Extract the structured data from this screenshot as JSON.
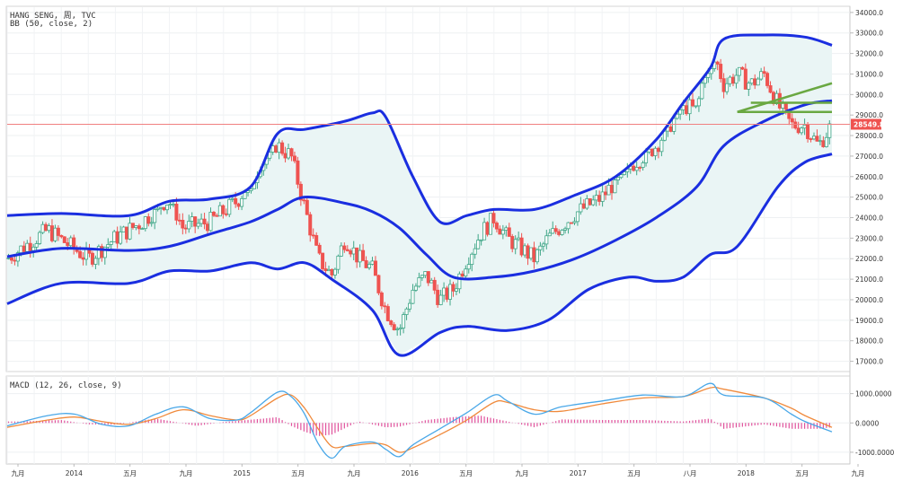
{
  "main_legend": {
    "symbol_line": "HANG SENG, 周, TVC",
    "indicator_line": "BB (50, close, 2)"
  },
  "macd_legend": "MACD (12, 26, close, 9)",
  "current_price_label": "28549.8",
  "x_tick_labels": [
    "九月",
    "2014",
    "五月",
    "九月",
    "2015",
    "五月",
    "九月",
    "2016",
    "五月",
    "九月",
    "2017",
    "五月",
    "八月",
    "2018",
    "五月",
    "九月"
  ],
  "colors": {
    "up": "#3fa687",
    "down": "#ef5350",
    "band": "#1a2ee0",
    "band_fill": "#eaf5f5",
    "trendline": "#6aa842",
    "macd_line": "#4aa8e8",
    "signal_line": "#f08a3c",
    "histogram": "#e0529c",
    "price_line": "#f08080"
  },
  "chart_data": [
    {
      "type": "candlestick",
      "title": "HANG SENG, 周, TVC",
      "indicator": "BB (50, close, 2)",
      "ylim": [
        16500,
        34300
      ],
      "y_ticks": [
        "17000.0",
        "18000.0",
        "19000.0",
        "20000.0",
        "21000.0",
        "22000.0",
        "23000.0",
        "24000.0",
        "25000.0",
        "26000.0",
        "27000.0",
        "28000.0",
        "29000.0",
        "30000.0",
        "31000.0",
        "32000.0",
        "33000.0",
        "34000.0"
      ],
      "x_range": [
        "2013-09",
        "2018-10"
      ],
      "price_path": [
        [
          "2013-09",
          22000
        ],
        [
          "2013-12",
          23400
        ],
        [
          "2014-03",
          22000
        ],
        [
          "2014-05",
          23000
        ],
        [
          "2014-07",
          23800
        ],
        [
          "2014-09",
          25000
        ],
        [
          "2014-10",
          23500
        ],
        [
          "2014-12",
          23800
        ],
        [
          "2015-02",
          24800
        ],
        [
          "2015-03",
          25800
        ],
        [
          "2015-04",
          28000
        ],
        [
          "2015-05",
          27500
        ],
        [
          "2015-06",
          27000
        ],
        [
          "2015-07",
          24500
        ],
        [
          "2015-08",
          22000
        ],
        [
          "2015-09",
          21200
        ],
        [
          "2015-10",
          23000
        ],
        [
          "2015-11",
          22000
        ],
        [
          "2015-12",
          21500
        ],
        [
          "2016-01",
          19500
        ],
        [
          "2016-02",
          18500
        ],
        [
          "2016-03",
          20500
        ],
        [
          "2016-04",
          21200
        ],
        [
          "2016-05",
          20000
        ],
        [
          "2016-06",
          20500
        ],
        [
          "2016-07",
          22000
        ],
        [
          "2016-08",
          23200
        ],
        [
          "2016-09",
          24000
        ],
        [
          "2016-10",
          23000
        ],
        [
          "2016-11",
          22500
        ],
        [
          "2016-12",
          22000
        ],
        [
          "2017-01",
          23000
        ],
        [
          "2017-03",
          24200
        ],
        [
          "2017-05",
          25000
        ],
        [
          "2017-06",
          25800
        ],
        [
          "2017-07",
          26500
        ],
        [
          "2017-09",
          27500
        ],
        [
          "2017-10",
          28500
        ],
        [
          "2017-11",
          29500
        ],
        [
          "2017-12",
          29200
        ],
        [
          "2018-01",
          32500
        ],
        [
          "2018-02",
          30500
        ],
        [
          "2018-03",
          31000
        ],
        [
          "2018-04",
          30500
        ],
        [
          "2018-05",
          31000
        ],
        [
          "2018-06",
          29500
        ],
        [
          "2018-07",
          28500
        ],
        [
          "2018-08",
          28500
        ],
        [
          "2018-09",
          27500
        ],
        [
          "2018-10",
          28550
        ]
      ],
      "upper_band": [
        [
          "2013-09",
          24100
        ],
        [
          "2014-01",
          24200
        ],
        [
          "2014-06",
          24100
        ],
        [
          "2014-09",
          24800
        ],
        [
          "2014-12",
          24900
        ],
        [
          "2015-03",
          25500
        ],
        [
          "2015-05",
          28100
        ],
        [
          "2015-07",
          28300
        ],
        [
          "2015-10",
          28700
        ],
        [
          "2015-12",
          29100
        ],
        [
          "2016-01",
          28900
        ],
        [
          "2016-03",
          26000
        ],
        [
          "2016-05",
          23800
        ],
        [
          "2016-07",
          24100
        ],
        [
          "2016-09",
          24400
        ],
        [
          "2016-12",
          24400
        ],
        [
          "2017-03",
          25100
        ],
        [
          "2017-06",
          26000
        ],
        [
          "2017-09",
          27800
        ],
        [
          "2017-11",
          29600
        ],
        [
          "2018-01",
          31300
        ],
        [
          "2018-02",
          32700
        ],
        [
          "2018-05",
          32900
        ],
        [
          "2018-08",
          32800
        ],
        [
          "2018-10",
          32400
        ]
      ],
      "middle_band": [
        [
          "2013-09",
          22100
        ],
        [
          "2014-01",
          22500
        ],
        [
          "2014-06",
          22400
        ],
        [
          "2014-09",
          22600
        ],
        [
          "2014-12",
          23200
        ],
        [
          "2015-03",
          23800
        ],
        [
          "2015-05",
          24400
        ],
        [
          "2015-07",
          25000
        ],
        [
          "2015-10",
          24700
        ],
        [
          "2015-12",
          24300
        ],
        [
          "2016-02",
          23500
        ],
        [
          "2016-04",
          22200
        ],
        [
          "2016-06",
          21100
        ],
        [
          "2016-09",
          21100
        ],
        [
          "2016-12",
          21400
        ],
        [
          "2017-03",
          22000
        ],
        [
          "2017-06",
          22900
        ],
        [
          "2017-09",
          24000
        ],
        [
          "2017-12",
          25500
        ],
        [
          "2018-02",
          27500
        ],
        [
          "2018-05",
          28700
        ],
        [
          "2018-08",
          29500
        ],
        [
          "2018-10",
          29700
        ]
      ],
      "lower_band": [
        [
          "2013-09",
          19800
        ],
        [
          "2014-01",
          20800
        ],
        [
          "2014-06",
          20800
        ],
        [
          "2014-09",
          21400
        ],
        [
          "2014-12",
          21400
        ],
        [
          "2015-03",
          21800
        ],
        [
          "2015-05",
          21500
        ],
        [
          "2015-07",
          21800
        ],
        [
          "2015-09",
          21000
        ],
        [
          "2015-12",
          19500
        ],
        [
          "2016-02",
          17300
        ],
        [
          "2016-05",
          18400
        ],
        [
          "2016-07",
          18700
        ],
        [
          "2016-10",
          18500
        ],
        [
          "2017-01",
          19000
        ],
        [
          "2017-04",
          20500
        ],
        [
          "2017-07",
          21100
        ],
        [
          "2017-09",
          20900
        ],
        [
          "2017-11",
          21100
        ],
        [
          "2018-01",
          22200
        ],
        [
          "2018-03",
          22600
        ],
        [
          "2018-06",
          25500
        ],
        [
          "2018-08",
          26700
        ],
        [
          "2018-10",
          27100
        ]
      ],
      "trend_lines": [
        [
          [
            "2018-03",
            29150
          ],
          [
            "2018-10",
            30550
          ]
        ],
        [
          [
            "2018-03",
            29150
          ],
          [
            "2018-10",
            29150
          ]
        ],
        [
          [
            "2018-04",
            29600
          ],
          [
            "2018-10",
            29600
          ]
        ]
      ],
      "current_price": 28549.8
    },
    {
      "type": "line",
      "title": "MACD (12, 26, close, 9)",
      "ylim": [
        -1400,
        1600
      ],
      "y_ticks": [
        "1000.0000",
        "0.0000",
        "-1000.0000"
      ],
      "series": [
        {
          "name": "MACD",
          "values": [
            [
              "2013-09",
              -100
            ],
            [
              "2013-12",
              250
            ],
            [
              "2014-02",
              300
            ],
            [
              "2014-04",
              -50
            ],
            [
              "2014-06",
              -100
            ],
            [
              "2014-08",
              300
            ],
            [
              "2014-10",
              550
            ],
            [
              "2014-12",
              150
            ],
            [
              "2015-02",
              100
            ],
            [
              "2015-03",
              350
            ],
            [
              "2015-05",
              1050
            ],
            [
              "2015-06",
              900
            ],
            [
              "2015-07",
              300
            ],
            [
              "2015-08",
              -700
            ],
            [
              "2015-09",
              -1200
            ],
            [
              "2015-10",
              -800
            ],
            [
              "2015-12",
              -650
            ],
            [
              "2016-01",
              -900
            ],
            [
              "2016-02",
              -1150
            ],
            [
              "2016-03",
              -750
            ],
            [
              "2016-05",
              -200
            ],
            [
              "2016-07",
              350
            ],
            [
              "2016-09",
              950
            ],
            [
              "2016-10",
              750
            ],
            [
              "2016-12",
              300
            ],
            [
              "2017-02",
              550
            ],
            [
              "2017-05",
              750
            ],
            [
              "2017-08",
              950
            ],
            [
              "2017-11",
              900
            ],
            [
              "2018-01",
              1350
            ],
            [
              "2018-02",
              950
            ],
            [
              "2018-05",
              850
            ],
            [
              "2018-07",
              300
            ],
            [
              "2018-08",
              50
            ],
            [
              "2018-10",
              -300
            ]
          ]
        },
        {
          "name": "Signal",
          "values": [
            [
              "2013-09",
              -150
            ],
            [
              "2013-12",
              100
            ],
            [
              "2014-02",
              200
            ],
            [
              "2014-04",
              50
            ],
            [
              "2014-06",
              -50
            ],
            [
              "2014-08",
              150
            ],
            [
              "2014-10",
              450
            ],
            [
              "2014-12",
              250
            ],
            [
              "2015-02",
              100
            ],
            [
              "2015-03",
              250
            ],
            [
              "2015-05",
              850
            ],
            [
              "2015-06",
              950
            ],
            [
              "2015-07",
              500
            ],
            [
              "2015-08",
              -200
            ],
            [
              "2015-09",
              -800
            ],
            [
              "2015-10",
              -800
            ],
            [
              "2015-12",
              -700
            ],
            [
              "2016-01",
              -750
            ],
            [
              "2016-02",
              -1000
            ],
            [
              "2016-03",
              -850
            ],
            [
              "2016-05",
              -400
            ],
            [
              "2016-07",
              100
            ],
            [
              "2016-09",
              700
            ],
            [
              "2016-10",
              700
            ],
            [
              "2016-12",
              450
            ],
            [
              "2017-02",
              400
            ],
            [
              "2017-05",
              650
            ],
            [
              "2017-08",
              850
            ],
            [
              "2017-11",
              900
            ],
            [
              "2018-01",
              1200
            ],
            [
              "2018-02",
              1150
            ],
            [
              "2018-05",
              850
            ],
            [
              "2018-07",
              500
            ],
            [
              "2018-08",
              250
            ],
            [
              "2018-10",
              -150
            ]
          ]
        }
      ],
      "histogram": [
        [
          "2013-10",
          50
        ],
        [
          "2014-01",
          100
        ],
        [
          "2014-03",
          -50
        ],
        [
          "2014-05",
          -60
        ],
        [
          "2014-08",
          150
        ],
        [
          "2014-11",
          -100
        ],
        [
          "2015-01",
          30
        ],
        [
          "2015-04",
          150
        ],
        [
          "2015-05",
          200
        ],
        [
          "2015-06",
          -100
        ],
        [
          "2015-07",
          -300
        ],
        [
          "2015-08",
          -450
        ],
        [
          "2015-09",
          -400
        ],
        [
          "2015-11",
          50
        ],
        [
          "2016-01",
          -150
        ],
        [
          "2016-02",
          -130
        ],
        [
          "2016-04",
          100
        ],
        [
          "2016-06",
          200
        ],
        [
          "2016-08",
          250
        ],
        [
          "2016-10",
          50
        ],
        [
          "2016-12",
          -150
        ],
        [
          "2017-02",
          120
        ],
        [
          "2017-05",
          100
        ],
        [
          "2017-08",
          100
        ],
        [
          "2017-11",
          50
        ],
        [
          "2018-01",
          150
        ],
        [
          "2018-02",
          -200
        ],
        [
          "2018-05",
          -50
        ],
        [
          "2018-07",
          -200
        ],
        [
          "2018-09",
          -200
        ],
        [
          "2018-10",
          -150
        ]
      ]
    }
  ]
}
